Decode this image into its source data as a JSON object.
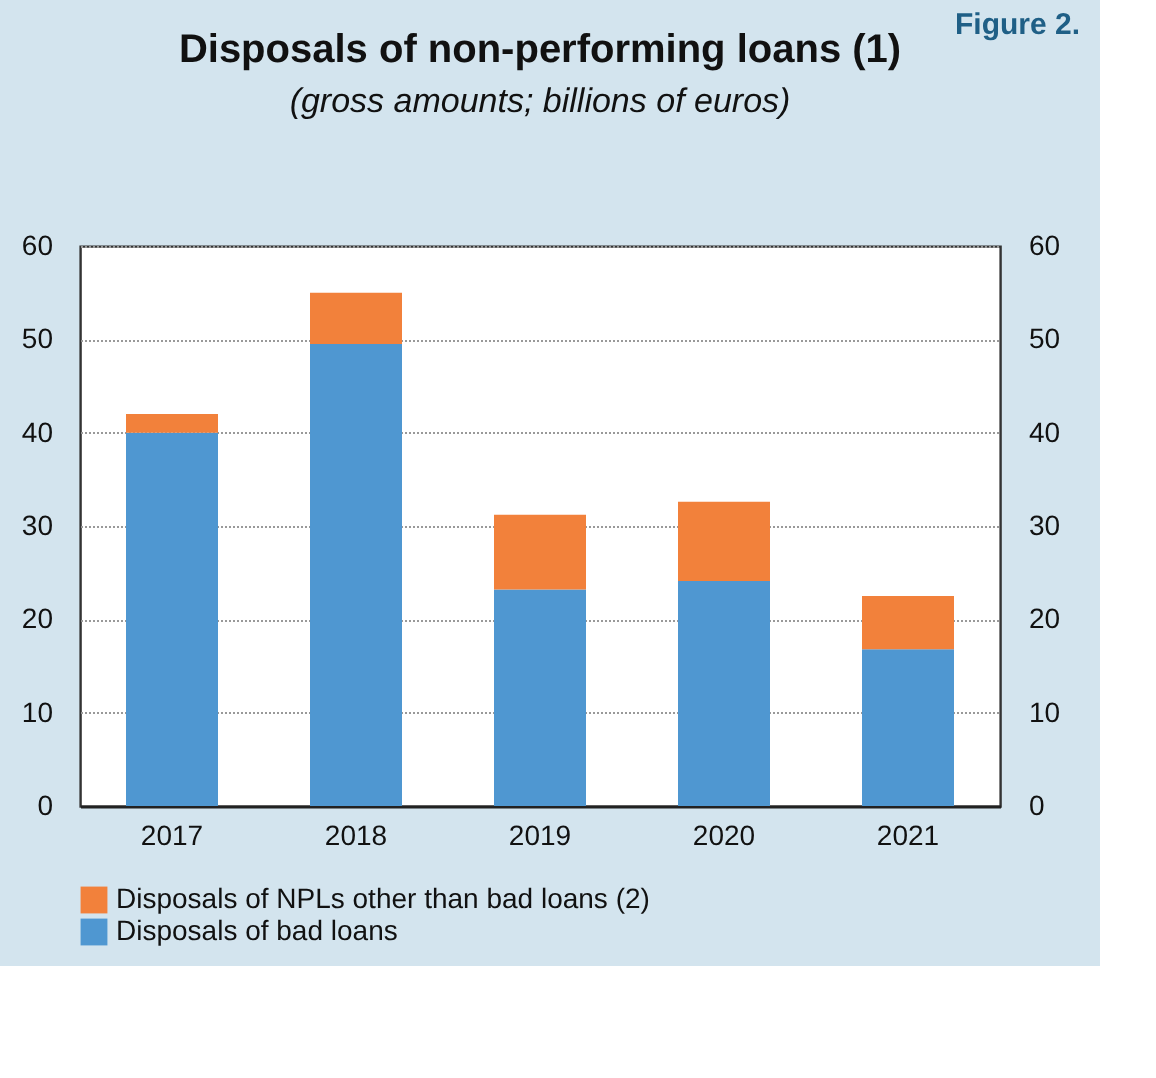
{
  "chart_data": {
    "type": "bar",
    "stacked": true,
    "title": "Disposals of non-performing loans (1)",
    "subtitle": "(gross amounts; billions of euros)",
    "annotations": [
      "Figure 2."
    ],
    "categories": [
      "2017",
      "2018",
      "2019",
      "2020",
      "2021"
    ],
    "series": [
      {
        "name": "Disposals of bad loans",
        "color": "#4f97d1",
        "values": [
          40,
          49.5,
          23.2,
          24.1,
          16.8
        ]
      },
      {
        "name": "Disposals of NPLs other than bad loans (2)",
        "color": "#f2813b",
        "values": [
          2,
          5.5,
          8,
          8.5,
          5.7
        ]
      }
    ],
    "ylim": [
      0,
      60
    ],
    "yticks": [
      0,
      10,
      20,
      30,
      40,
      50,
      60
    ],
    "y2lim": [
      0,
      60
    ],
    "y2ticks": [
      0,
      10,
      20,
      30,
      40,
      50,
      60
    ],
    "grid": "y",
    "legend": "bottom"
  }
}
